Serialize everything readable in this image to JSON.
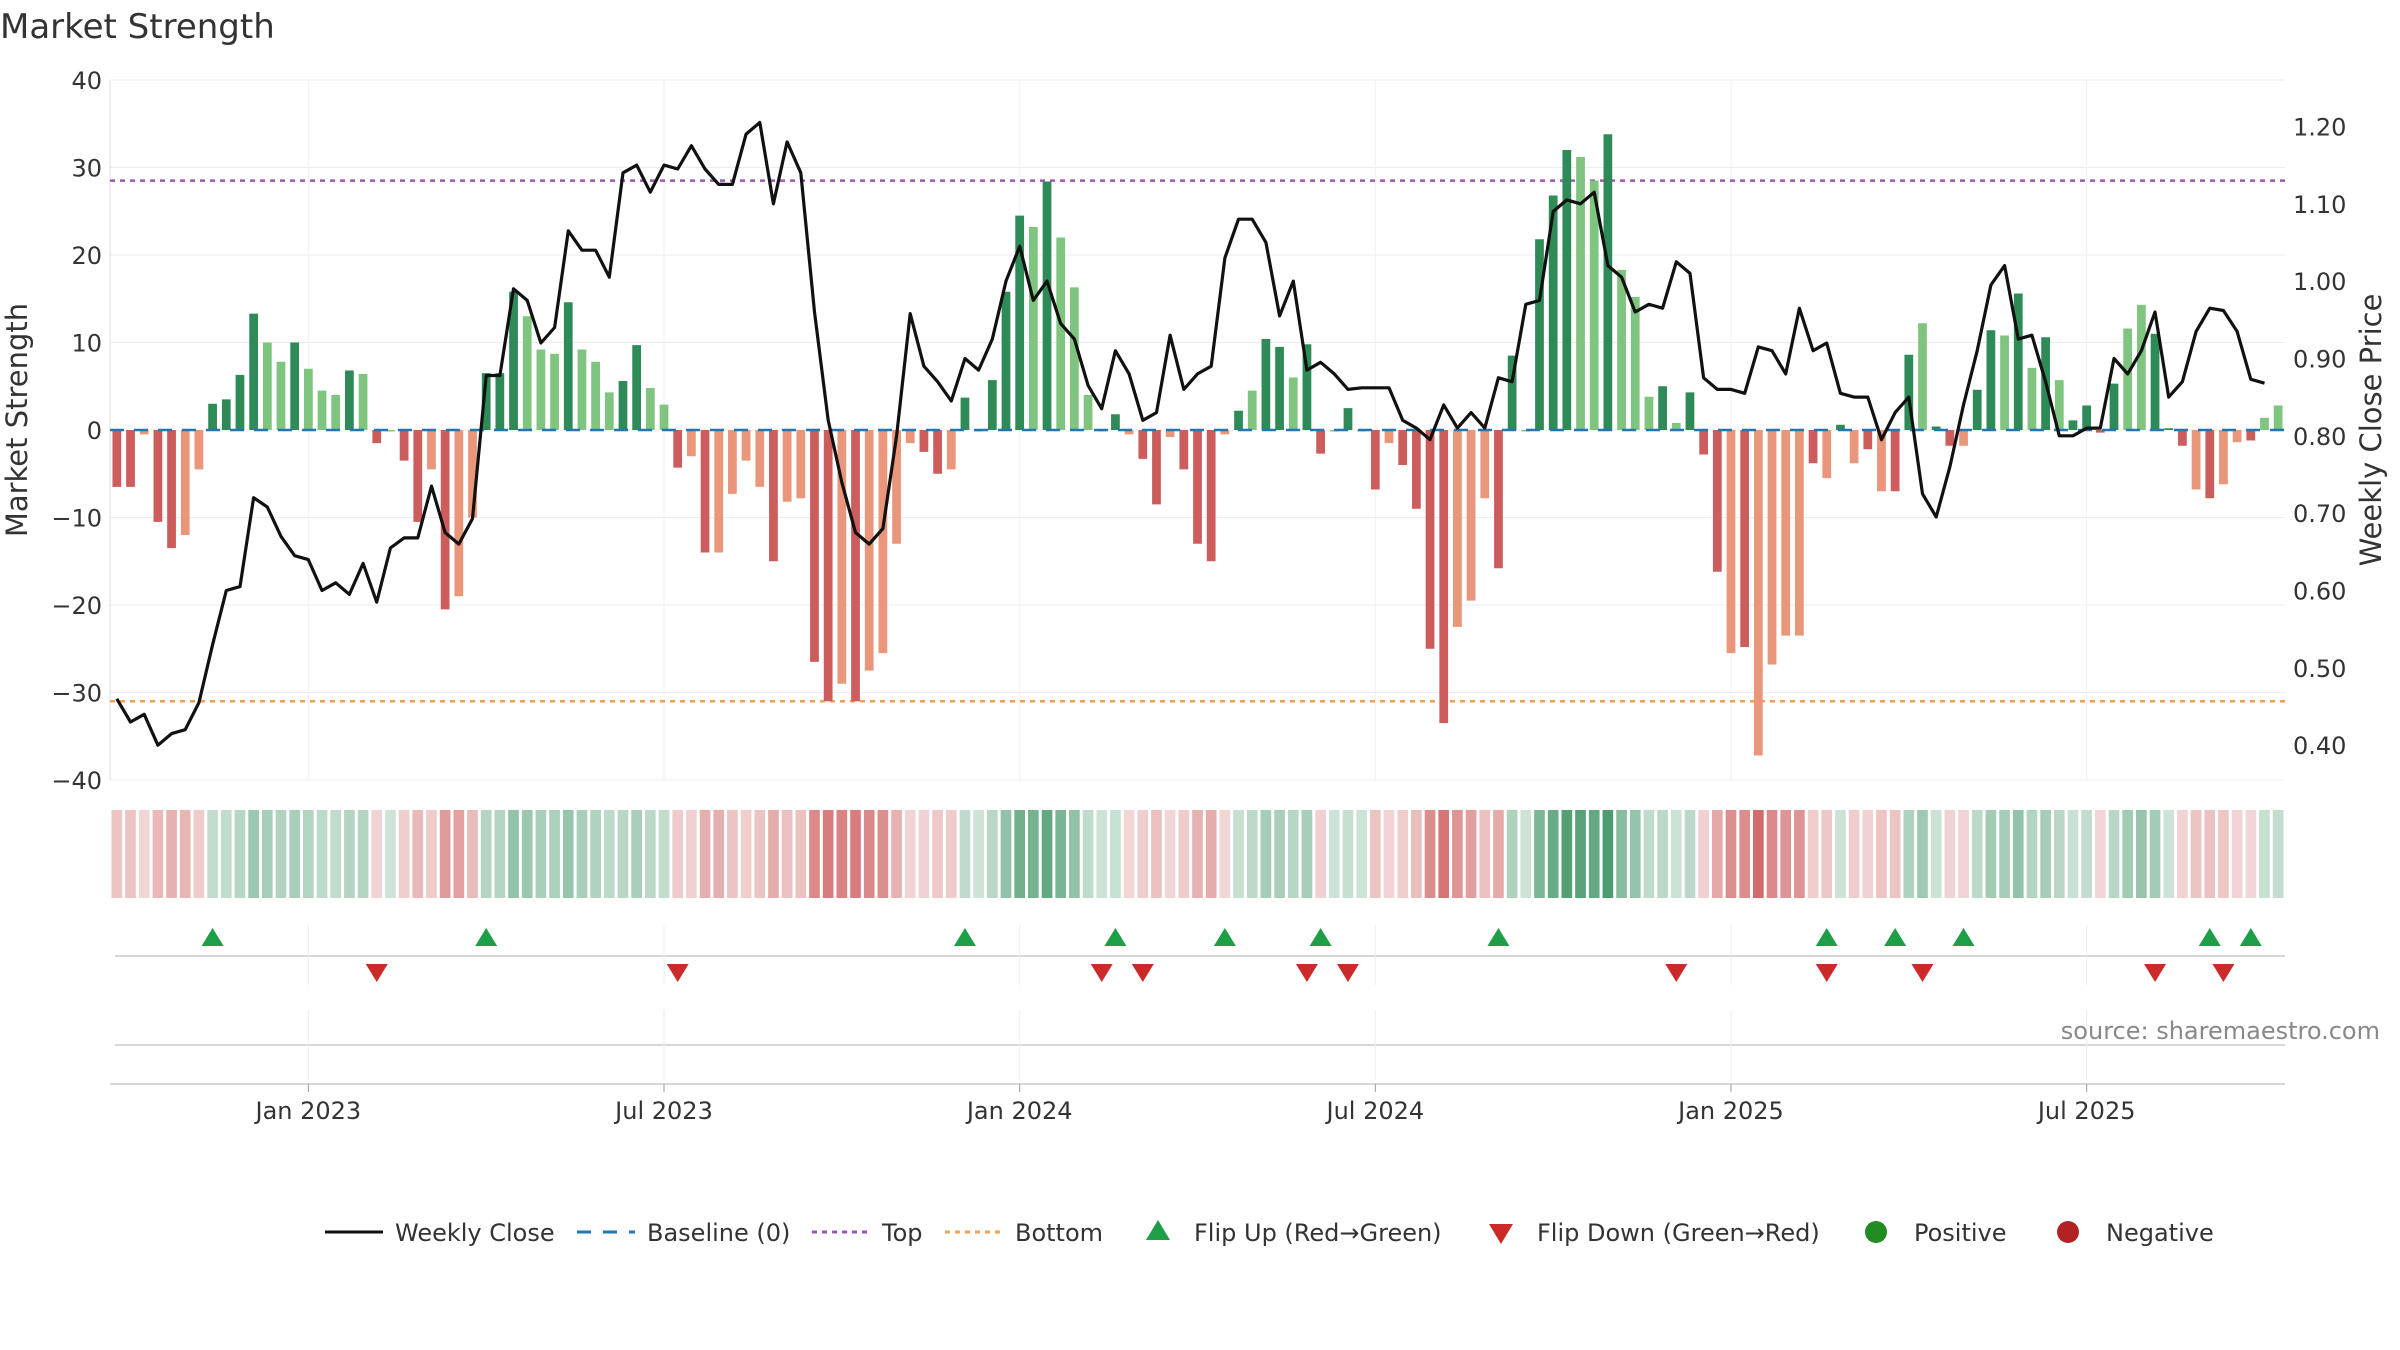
{
  "chart_data": {
    "type": "bar+line",
    "title": "Market Strength",
    "left_axis": {
      "label": "Market Strength",
      "ticks": [
        "40",
        "30",
        "20",
        "10",
        "0",
        "−10",
        "−20",
        "−30",
        "−40"
      ],
      "range": [
        -40,
        40
      ]
    },
    "right_axis": {
      "label": "Weekly Close Price",
      "ticks": [
        "1.20",
        "1.10",
        "1.00",
        "0.90",
        "0.80",
        "0.70",
        "0.60",
        "0.50",
        "0.40"
      ],
      "range": [
        0.355,
        1.26
      ]
    },
    "x_axis": {
      "ticks": [
        {
          "label": "Jan 2023",
          "week": 14
        },
        {
          "label": "Jul 2023",
          "week": 40
        },
        {
          "label": "Jan 2024",
          "week": 66
        },
        {
          "label": "Jul 2024",
          "week": 92
        },
        {
          "label": "Jan 2025",
          "week": 118
        },
        {
          "label": "Jul 2025",
          "week": 144
        }
      ]
    },
    "top_level": 28.5,
    "bottom_level": -31,
    "strength": [
      -6.5,
      -6.5,
      -0.5,
      -10.5,
      -13.5,
      -12,
      -4.5,
      3,
      3.5,
      6.3,
      13.3,
      10,
      7.8,
      10,
      7,
      4.5,
      4,
      6.8,
      6.4,
      -1.5,
      0,
      -3.5,
      -10.5,
      -4.5,
      -20.5,
      -19,
      -10,
      6.5,
      6.5,
      15.8,
      13,
      9.2,
      8.7,
      14.6,
      9.2,
      7.8,
      4.3,
      5.6,
      9.7,
      4.8,
      2.9,
      -4.3,
      -3,
      -14,
      -14,
      -7.3,
      -3.5,
      -6.5,
      -15,
      -8.2,
      -7.8,
      -26.5,
      -31,
      -29,
      -31,
      -27.5,
      -25.5,
      -13,
      -1.5,
      -2.5,
      -5,
      -4.5,
      3.7,
      0,
      5.7,
      15.8,
      24.5,
      23.2,
      28.4,
      22,
      16.3,
      4,
      0,
      1.8,
      -0.5,
      -3.3,
      -8.5,
      -0.8,
      -4.5,
      -13,
      -15,
      -0.5,
      2.2,
      4.5,
      10.4,
      9.5,
      6,
      9.8,
      -2.7,
      0,
      2.5,
      0,
      -6.8,
      -1.5,
      -4,
      -9,
      -25,
      -33.5,
      -22.5,
      -19.5,
      -7.8,
      -15.8,
      8.5,
      0,
      21.8,
      26.8,
      32,
      31.2,
      28.5,
      33.8,
      18.3,
      15.2,
      3.8,
      5,
      0.8,
      4.3,
      -2.8,
      -16.2,
      -25.5,
      -24.8,
      -37.2,
      -26.8,
      -23.5,
      -23.5,
      -3.8,
      -5.5,
      0.6,
      -3.8,
      -2.2,
      -7,
      -7,
      8.6,
      12.2,
      0.4,
      -1.8,
      -1.8,
      4.6,
      11.4,
      10.8,
      15.6,
      7.1,
      10.6,
      5.7,
      1.1,
      2.8,
      -0.3,
      5.3,
      11.6,
      14.3,
      11,
      0.2,
      -1.8,
      -6.8,
      -7.8,
      -6.2,
      -1.4,
      -1.2,
      1.4,
      2.8
    ],
    "shade": [
      1,
      1,
      0,
      1,
      1,
      0,
      0,
      1,
      1,
      1,
      1,
      0,
      0,
      1,
      0,
      0,
      0,
      1,
      0,
      1,
      0,
      1,
      1,
      0,
      1,
      0,
      0,
      1,
      1,
      1,
      0,
      0,
      0,
      1,
      0,
      0,
      0,
      1,
      1,
      0,
      0,
      1,
      0,
      1,
      0,
      0,
      0,
      0,
      1,
      0,
      0,
      1,
      1,
      0,
      1,
      0,
      0,
      0,
      0,
      1,
      1,
      0,
      1,
      0,
      1,
      1,
      1,
      0,
      1,
      0,
      0,
      0,
      0,
      1,
      0,
      1,
      1,
      0,
      1,
      1,
      1,
      0,
      1,
      0,
      1,
      1,
      0,
      1,
      1,
      0,
      1,
      0,
      1,
      0,
      1,
      1,
      1,
      1,
      0,
      0,
      0,
      1,
      1,
      0,
      1,
      1,
      1,
      0,
      0,
      1,
      0,
      0,
      0,
      1,
      0,
      1,
      1,
      1,
      0,
      1,
      0,
      0,
      0,
      0,
      1,
      0,
      1,
      0,
      1,
      0,
      1,
      1,
      0,
      1,
      1,
      0,
      1,
      1,
      0,
      1,
      0,
      1,
      0,
      1,
      1,
      1,
      1,
      0,
      0,
      1,
      1,
      1,
      0,
      1,
      0,
      0,
      1,
      0
    ],
    "close": [
      0.46,
      0.43,
      0.44,
      0.4,
      0.415,
      0.42,
      0.455,
      0.53,
      0.6,
      0.605,
      0.72,
      0.708,
      0.67,
      0.645,
      0.64,
      0.6,
      0.61,
      0.595,
      0.635,
      0.585,
      0.655,
      0.668,
      0.668,
      0.735,
      0.675,
      0.66,
      0.693,
      0.878,
      0.878,
      0.99,
      0.975,
      0.92,
      0.94,
      1.065,
      1.04,
      1.04,
      1.005,
      1.14,
      1.15,
      1.115,
      1.15,
      1.145,
      1.175,
      1.145,
      1.125,
      1.125,
      1.19,
      1.205,
      1.1,
      1.18,
      1.14,
      0.96,
      0.82,
      0.74,
      0.675,
      0.66,
      0.68,
      0.8,
      0.958,
      0.89,
      0.87,
      0.845,
      0.9,
      0.885,
      0.925,
      1.0,
      1.045,
      0.975,
      1.0,
      0.945,
      0.925,
      0.865,
      0.835,
      0.91,
      0.88,
      0.82,
      0.83,
      0.93,
      0.86,
      0.88,
      0.89,
      1.03,
      1.08,
      1.08,
      1.05,
      0.955,
      1.0,
      0.885,
      0.895,
      0.88,
      0.86,
      0.862,
      0.862,
      0.862,
      0.82,
      0.81,
      0.795,
      0.84,
      0.81,
      0.83,
      0.81,
      0.875,
      0.87,
      0.97,
      0.975,
      1.09,
      1.105,
      1.1,
      1.115,
      1.02,
      1.005,
      0.96,
      0.97,
      0.965,
      1.025,
      1.01,
      0.875,
      0.86,
      0.86,
      0.855,
      0.915,
      0.91,
      0.88,
      0.965,
      0.91,
      0.92,
      0.855,
      0.85,
      0.85,
      0.795,
      0.83,
      0.85,
      0.725,
      0.695,
      0.76,
      0.84,
      0.91,
      0.995,
      1.02,
      0.925,
      0.93,
      0.87,
      0.8,
      0.8,
      0.81,
      0.81,
      0.9,
      0.88,
      0.91,
      0.96,
      0.85,
      0.87,
      0.935,
      0.965,
      0.962,
      0.935,
      0.873,
      0.868
    ],
    "flip_up_weeks": [
      7,
      27,
      62,
      73,
      81,
      88,
      101,
      125,
      130,
      135,
      153,
      156
    ],
    "flip_down_weeks": [
      19,
      41,
      72,
      75,
      87,
      90,
      114,
      125,
      132,
      149,
      154
    ],
    "series": [
      "Weekly Close",
      "Baseline (0)",
      "Top",
      "Bottom",
      "Flip Up (Red→Green)",
      "Flip Down (Green→Red)",
      "Positive",
      "Negative"
    ],
    "legend": [
      {
        "key": "line",
        "label": "Weekly Close"
      },
      {
        "key": "baseline",
        "label": "Baseline (0)"
      },
      {
        "key": "top",
        "label": "Top"
      },
      {
        "key": "bottom",
        "label": "Bottom"
      },
      {
        "key": "up",
        "label": "Flip Up (Red→Green)"
      },
      {
        "key": "down",
        "label": "Flip Down (Green→Red)"
      },
      {
        "key": "pos",
        "label": "Positive"
      },
      {
        "key": "neg",
        "label": "Negative"
      }
    ],
    "source": "source: sharemaestro.com"
  },
  "colors": {
    "pos_dark": "#2e8b57",
    "pos_light": "#7fc47f",
    "neg_dark": "#cd5c5c",
    "neg_light": "#e9967a",
    "line": "#111111",
    "baseline": "#1f77b4",
    "top": "#9b59b6",
    "bottom": "#f0a050",
    "up": "#1e9e46",
    "down": "#cc2a2a",
    "pos_dot": "#228b22",
    "neg_dot": "#b22222"
  }
}
